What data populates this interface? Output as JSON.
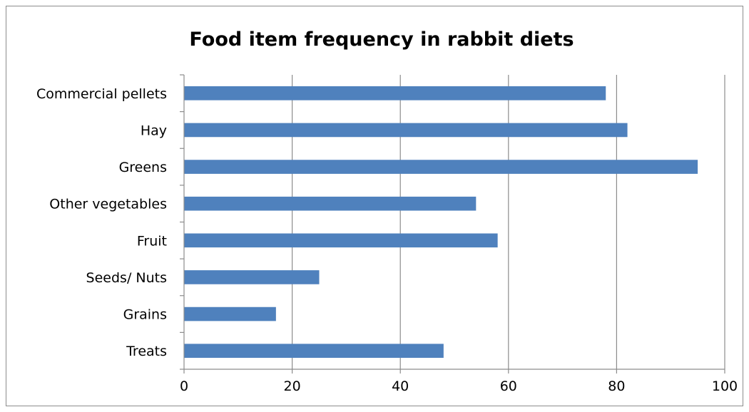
{
  "chart_data": {
    "type": "bar",
    "orientation": "horizontal",
    "title": "Food item frequency in rabbit diets",
    "xlabel": "",
    "ylabel": "",
    "categories": [
      "Commercial pellets",
      "Hay",
      "Greens",
      "Other vegetables",
      "Fruit",
      "Seeds/ Nuts",
      "Grains",
      "Treats"
    ],
    "values": [
      78,
      82,
      95,
      54,
      58,
      25,
      17,
      48
    ],
    "xlim": [
      0,
      100
    ],
    "xticks": [
      0,
      20,
      40,
      60,
      80,
      100
    ],
    "grid": "vertical",
    "legend": "none",
    "bar_color": "#4f81bd",
    "grid_color": "#8c8c8c"
  }
}
